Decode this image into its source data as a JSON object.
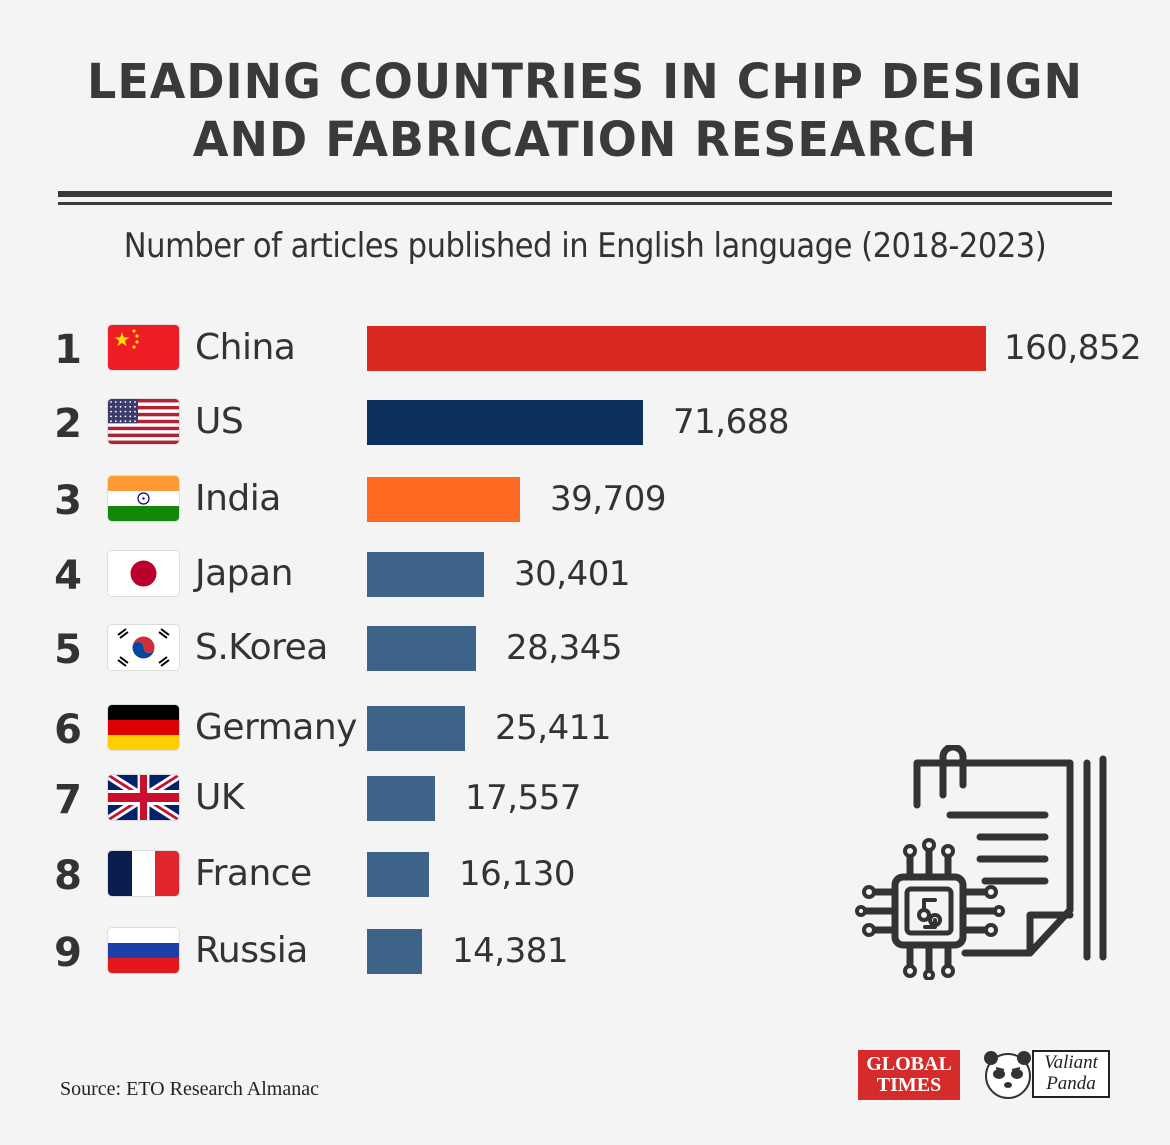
{
  "title": {
    "line1": "LEADING COUNTRIES IN CHIP DESIGN",
    "line2": "AND FABRICATION RESEARCH"
  },
  "subtitle": "Number of articles published in English language (2018-2023)",
  "chart_data": {
    "type": "bar",
    "orientation": "horizontal",
    "title": "LEADING COUNTRIES IN CHIP DESIGN AND FABRICATION RESEARCH",
    "subtitle": "Number of articles published in English language (2018-2023)",
    "categories": [
      "China",
      "US",
      "India",
      "Japan",
      "S.Korea",
      "Germany",
      "UK",
      "France",
      "Russia"
    ],
    "ranks": [
      "1",
      "2",
      "3",
      "4",
      "5",
      "6",
      "7",
      "8",
      "9"
    ],
    "values": [
      160852,
      71688,
      39709,
      30401,
      28345,
      25411,
      17557,
      16130,
      14381
    ],
    "value_labels": [
      "160,852",
      "71,688",
      "39,709",
      "30,401",
      "28,345",
      "25,411",
      "17,557",
      "16,130",
      "14,381"
    ],
    "bar_colors": [
      "#d8281f",
      "#0c305c",
      "#ff6a22",
      "#3d6389",
      "#3d6389",
      "#3d6389",
      "#3d6389",
      "#3d6389",
      "#3d6389"
    ],
    "flags": [
      "china-flag",
      "us-flag",
      "india-flag",
      "japan-flag",
      "south-korea-flag",
      "germany-flag",
      "uk-flag",
      "france-flag",
      "russia-flag"
    ],
    "xlim": [
      0,
      160852
    ],
    "grid": false,
    "legend": "none",
    "axes_visible": false
  },
  "source": "Source: ETO Research Almanac",
  "logos": {
    "global_times": {
      "line1": "GLOBAL",
      "line2": "TIMES",
      "color": "#d52b2b"
    },
    "valiant_panda": {
      "line1": "Valiant",
      "line2": "Panda"
    }
  },
  "decor": {
    "icon": "chip-document-icon"
  },
  "colors": {
    "background": "#f4f4f4",
    "text": "#333333"
  }
}
